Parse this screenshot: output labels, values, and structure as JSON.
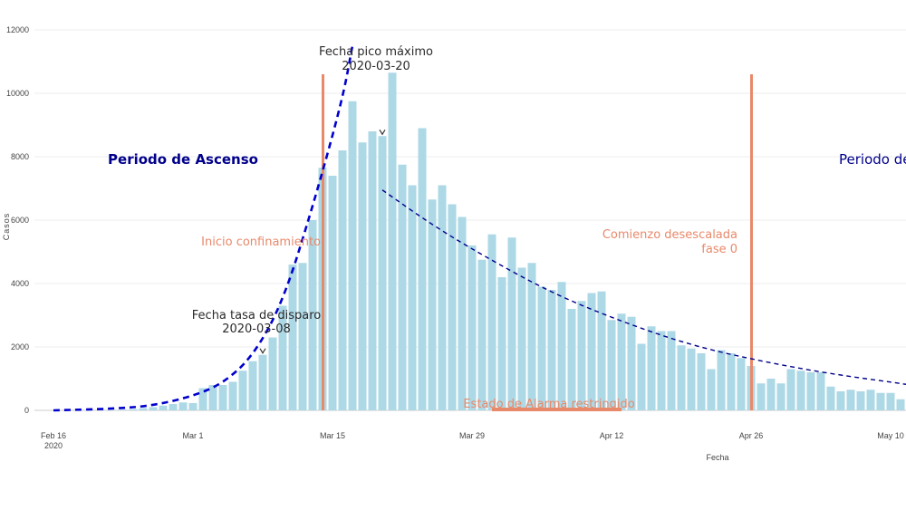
{
  "colors": {
    "bar": "#add8e6",
    "vline": "#e8896a",
    "trend": "#0000cd",
    "trend_dark": "#00008b",
    "annotation_text": "#2b2b2b",
    "grid": "#eeeeee"
  },
  "chart_data": {
    "type": "bar",
    "xlabel": "Fecha",
    "ylabel": "Casos",
    "ylim": [
      0,
      12000
    ],
    "y_ticks": [
      "0",
      "2000",
      "4000",
      "6000",
      "8000",
      "10000",
      "12000"
    ],
    "x_ticks": [
      {
        "label": "Feb 16",
        "sub": "2020",
        "date": "2020-02-16"
      },
      {
        "label": "Mar 1",
        "sub": "",
        "date": "2020-03-01"
      },
      {
        "label": "Mar 15",
        "sub": "",
        "date": "2020-03-15"
      },
      {
        "label": "Mar 29",
        "sub": "",
        "date": "2020-03-29"
      },
      {
        "label": "Apr 12",
        "sub": "",
        "date": "2020-04-12"
      },
      {
        "label": "Apr 26",
        "sub": "",
        "date": "2020-04-26"
      },
      {
        "label": "May 10",
        "sub": "",
        "date": "2020-05-10"
      }
    ],
    "x_start": "2020-02-16",
    "values": [
      0,
      0,
      0,
      5,
      5,
      10,
      15,
      20,
      40,
      70,
      100,
      150,
      200,
      250,
      230,
      700,
      800,
      800,
      900,
      1250,
      1550,
      1750,
      2300,
      3300,
      4600,
      4650,
      6000,
      7650,
      7400,
      8200,
      9750,
      8450,
      8800,
      8650,
      10650,
      7750,
      7100,
      8900,
      6650,
      7100,
      6500,
      6100,
      5200,
      4750,
      5550,
      4200,
      5450,
      4500,
      4650,
      3900,
      3800,
      4050,
      3200,
      3450,
      3700,
      3750,
      2850,
      3050,
      2950,
      2100,
      2650,
      2500,
      2500,
      2050,
      1950,
      1800,
      1300,
      1900,
      1800,
      1650,
      1400,
      850,
      1000,
      850,
      1300,
      1250,
      1200,
      1200,
      750,
      600,
      650,
      600,
      650,
      550,
      550,
      350,
      250
    ],
    "series": [
      {
        "type": "bar",
        "values_ref": "values"
      },
      {
        "type": "line",
        "style": "dashed",
        "points": [
          [
            "2020-02-16",
            0
          ],
          [
            "2020-02-22",
            50
          ],
          [
            "2020-02-26",
            150
          ],
          [
            "2020-03-01",
            450
          ],
          [
            "2020-03-04",
            850
          ],
          [
            "2020-03-07",
            1700
          ],
          [
            "2020-03-10",
            3400
          ],
          [
            "2020-03-13",
            6400
          ],
          [
            "2020-03-16",
            9800
          ],
          [
            "2020-03-17",
            11500
          ]
        ]
      },
      {
        "type": "line",
        "style": "dashed",
        "points": [
          [
            "2020-03-20",
            6950
          ],
          [
            "2020-03-25",
            5850
          ],
          [
            "2020-03-30",
            4900
          ],
          [
            "2020-04-06",
            3700
          ],
          [
            "2020-04-13",
            2800
          ],
          [
            "2020-04-20",
            2050
          ],
          [
            "2020-04-27",
            1550
          ],
          [
            "2020-05-04",
            1150
          ],
          [
            "2020-05-11",
            850
          ],
          [
            "2020-05-14",
            700
          ]
        ]
      }
    ],
    "vertical_lines": [
      "2020-03-14",
      "2020-04-26"
    ],
    "restricted_segment": {
      "from": "2020-03-31",
      "to": "2020-04-13",
      "y": 0
    }
  },
  "annotations": {
    "peak_line1": "Fecha pico máximo",
    "peak_line2": "2020-03-20",
    "rate_line1": "Fecha tasa de disparo",
    "rate_line2": "2020-03-08",
    "inicio_confinamiento": "Inicio confinamiento",
    "desescalada_line1": "Comienzo desescalada",
    "desescalada_line2": "fase 0",
    "estado_alarma": "Estado de Alarma restringido",
    "periodo_ascenso": "Periodo de Ascenso",
    "periodo_descenso": "Periodo de"
  }
}
